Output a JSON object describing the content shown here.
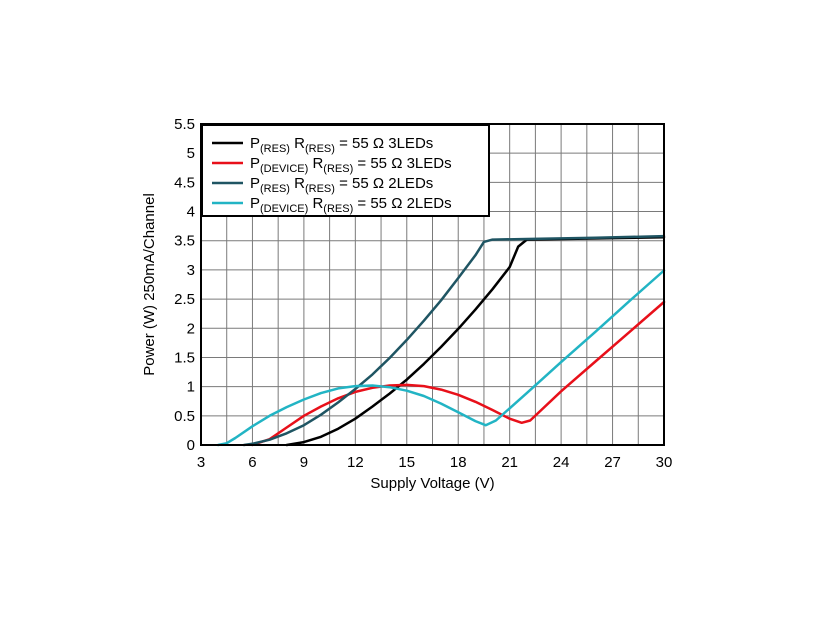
{
  "chart_data": {
    "type": "line",
    "xlabel": "Supply Voltage (V)",
    "ylabel": "Power (W) 250mA/Channel",
    "xlim": [
      3,
      30
    ],
    "ylim": [
      0,
      5.5
    ],
    "xticks": [
      3,
      6,
      9,
      12,
      15,
      18,
      21,
      24,
      27,
      30
    ],
    "yticks": [
      0,
      0.5,
      1,
      1.5,
      2,
      2.5,
      3,
      3.5,
      4,
      4.5,
      5,
      5.5
    ],
    "x_minor_step": 1.5,
    "grid": true,
    "legend_position": "top-left",
    "colors": {
      "black": "#000000",
      "red": "#e8101a",
      "darkteal": "#1f5563",
      "cyan": "#22b4c4"
    },
    "series": [
      {
        "name": "P(RES) R(RES) = 55 Ω 3LEDs",
        "legend": {
          "p_sub": "(RES)",
          "r_sub": "(RES)",
          "tail": "= 55 Ω 3LEDs"
        },
        "color": "#000000",
        "x": [
          8,
          9,
          10,
          11,
          12,
          13,
          14,
          15,
          16,
          17,
          18,
          19,
          20,
          21,
          21.5,
          22,
          30
        ],
        "y": [
          0,
          0.05,
          0.14,
          0.28,
          0.45,
          0.66,
          0.88,
          1.12,
          1.39,
          1.68,
          1.99,
          2.32,
          2.67,
          3.05,
          3.4,
          3.52,
          3.56
        ]
      },
      {
        "name": "P(DEVICE) R(RES) = 55 Ω 3LEDs",
        "legend": {
          "p_sub": "(DEVICE)",
          "r_sub": "(RES)",
          "tail": "= 55 Ω 3LEDs"
        },
        "color": "#e8101a",
        "x": [
          6,
          7,
          8,
          9,
          10,
          11,
          12,
          13,
          14,
          15,
          16,
          17,
          18,
          19,
          20,
          21,
          21.7,
          22.2,
          24,
          26,
          28,
          30
        ],
        "y": [
          0,
          0.1,
          0.3,
          0.5,
          0.66,
          0.8,
          0.91,
          0.98,
          1.02,
          1.03,
          1.01,
          0.95,
          0.86,
          0.74,
          0.6,
          0.45,
          0.38,
          0.42,
          0.92,
          1.43,
          1.94,
          2.45
        ]
      },
      {
        "name": "P(RES) R(RES) = 55 Ω 2LEDs",
        "legend": {
          "p_sub": "(RES)",
          "r_sub": "(RES)",
          "tail": "= 55 Ω 2LEDs"
        },
        "color": "#1f5563",
        "x": [
          5.5,
          6,
          7,
          8,
          9,
          10,
          11,
          12,
          13,
          14,
          15,
          16,
          17,
          18,
          19,
          19.5,
          20,
          22,
          26,
          30
        ],
        "y": [
          0,
          0.02,
          0.09,
          0.2,
          0.34,
          0.52,
          0.73,
          0.96,
          1.21,
          1.49,
          1.8,
          2.13,
          2.48,
          2.86,
          3.25,
          3.48,
          3.52,
          3.53,
          3.55,
          3.58
        ]
      },
      {
        "name": "P(DEVICE) R(RES) = 55 Ω 2LEDs",
        "legend": {
          "p_sub": "(DEVICE)",
          "r_sub": "(RES)",
          "tail": "= 55 Ω 2LEDs"
        },
        "color": "#22b4c4",
        "x": [
          4,
          4.5,
          5,
          6,
          7,
          8,
          9,
          10,
          11,
          12,
          13,
          14,
          15,
          16,
          17,
          18,
          19,
          19.6,
          20.2,
          22,
          24,
          26,
          28,
          30
        ],
        "y": [
          0,
          0.03,
          0.12,
          0.32,
          0.5,
          0.65,
          0.78,
          0.89,
          0.97,
          1.01,
          1.02,
          0.99,
          0.93,
          0.84,
          0.71,
          0.56,
          0.41,
          0.34,
          0.42,
          0.89,
          1.42,
          1.94,
          2.47,
          2.99
        ]
      }
    ]
  }
}
